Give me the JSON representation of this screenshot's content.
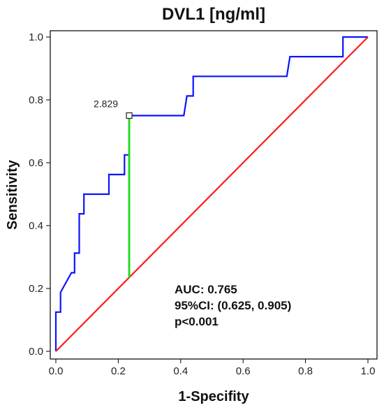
{
  "chart_data": {
    "type": "line",
    "title": "DVL1 [ng/ml]",
    "xlabel": "1-Specifity",
    "ylabel": "Sensitivity",
    "xlim": [
      0,
      1
    ],
    "ylim": [
      0,
      1
    ],
    "xticks": [
      "0.0",
      "0.2",
      "0.4",
      "0.6",
      "0.8",
      "1.0"
    ],
    "yticks": [
      "0.0",
      "0.2",
      "0.4",
      "0.6",
      "0.8",
      "1.0"
    ],
    "grid": false,
    "series": [
      {
        "color": "#0a14ff",
        "x": [
          0,
          0,
          0.015,
          0.015,
          0.05,
          0.06,
          0.06,
          0.075,
          0.075,
          0.09,
          0.09,
          0.17,
          0.17,
          0.22,
          0.22,
          0.235,
          0.235,
          0.41,
          0.42,
          0.44,
          0.44,
          0.74,
          0.75,
          0.92,
          0.92,
          1.0
        ],
        "y": [
          0,
          0.125,
          0.125,
          0.1875,
          0.25,
          0.25,
          0.3125,
          0.3125,
          0.4375,
          0.4375,
          0.5,
          0.5,
          0.5625,
          0.5625,
          0.625,
          0.625,
          0.75,
          0.75,
          0.8125,
          0.8125,
          0.875,
          0.875,
          0.9375,
          0.9375,
          1.0,
          1.0
        ]
      },
      {
        "color": "#ff1a1a",
        "x": [
          0,
          1
        ],
        "y": [
          0,
          1
        ]
      }
    ],
    "cutoff": {
      "label": "2.829",
      "x": 0.235,
      "y": 0.75,
      "y_low": 0.235,
      "color": "#22dd22"
    },
    "annotations": [
      "AUC: 0.765",
      "95%CI: (0.625, 0.905)",
      "p<0.001"
    ]
  }
}
